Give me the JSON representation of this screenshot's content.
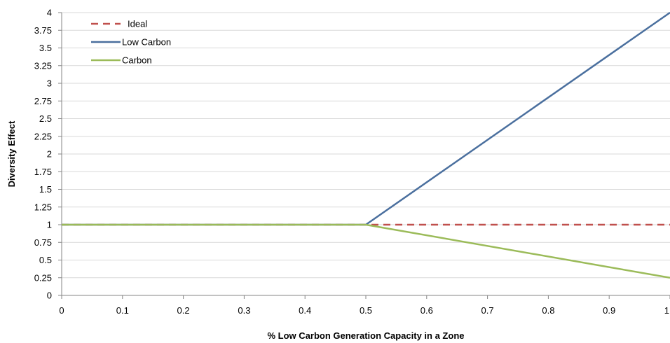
{
  "chart_data": {
    "type": "line",
    "title": "",
    "xlabel": "% Low Carbon Generation Capacity in a Zone",
    "ylabel": "Diversity Effect",
    "xlim": [
      0,
      1
    ],
    "ylim": [
      0,
      4
    ],
    "x_ticks": [
      0,
      0.1,
      0.2,
      0.3,
      0.4,
      0.5,
      0.6,
      0.7,
      0.8,
      0.9,
      1
    ],
    "x_tick_labels": [
      "0",
      "0.1",
      "0.2",
      "0.3",
      "0.4",
      "0.5",
      "0.6",
      "0.7",
      "0.8",
      "0.9",
      "1"
    ],
    "y_ticks": [
      0,
      0.25,
      0.5,
      0.75,
      1,
      1.25,
      1.5,
      1.75,
      2,
      2.25,
      2.5,
      2.75,
      3,
      3.25,
      3.5,
      3.75,
      4
    ],
    "y_tick_labels": [
      "0",
      "0.25",
      "0.5",
      "0.75",
      "1",
      "1.25",
      "1.5",
      "1.75",
      "2",
      "2.25",
      "2.5",
      "2.75",
      "3",
      "3.25",
      "3.5",
      "3.75",
      "4"
    ],
    "grid": "horizontal",
    "legend_position": "top-left",
    "series": [
      {
        "name": "Ideal",
        "color": "#c0504d",
        "dash": true,
        "points": [
          [
            0,
            1
          ],
          [
            1,
            1
          ]
        ]
      },
      {
        "name": "Low Carbon",
        "color": "#4a6f9e",
        "dash": false,
        "points": [
          [
            0,
            1
          ],
          [
            0.5,
            1
          ],
          [
            1,
            4
          ]
        ]
      },
      {
        "name": "Carbon",
        "color": "#9bbb59",
        "dash": false,
        "points": [
          [
            0,
            1
          ],
          [
            0.5,
            1
          ],
          [
            1,
            0.25
          ]
        ]
      }
    ]
  }
}
